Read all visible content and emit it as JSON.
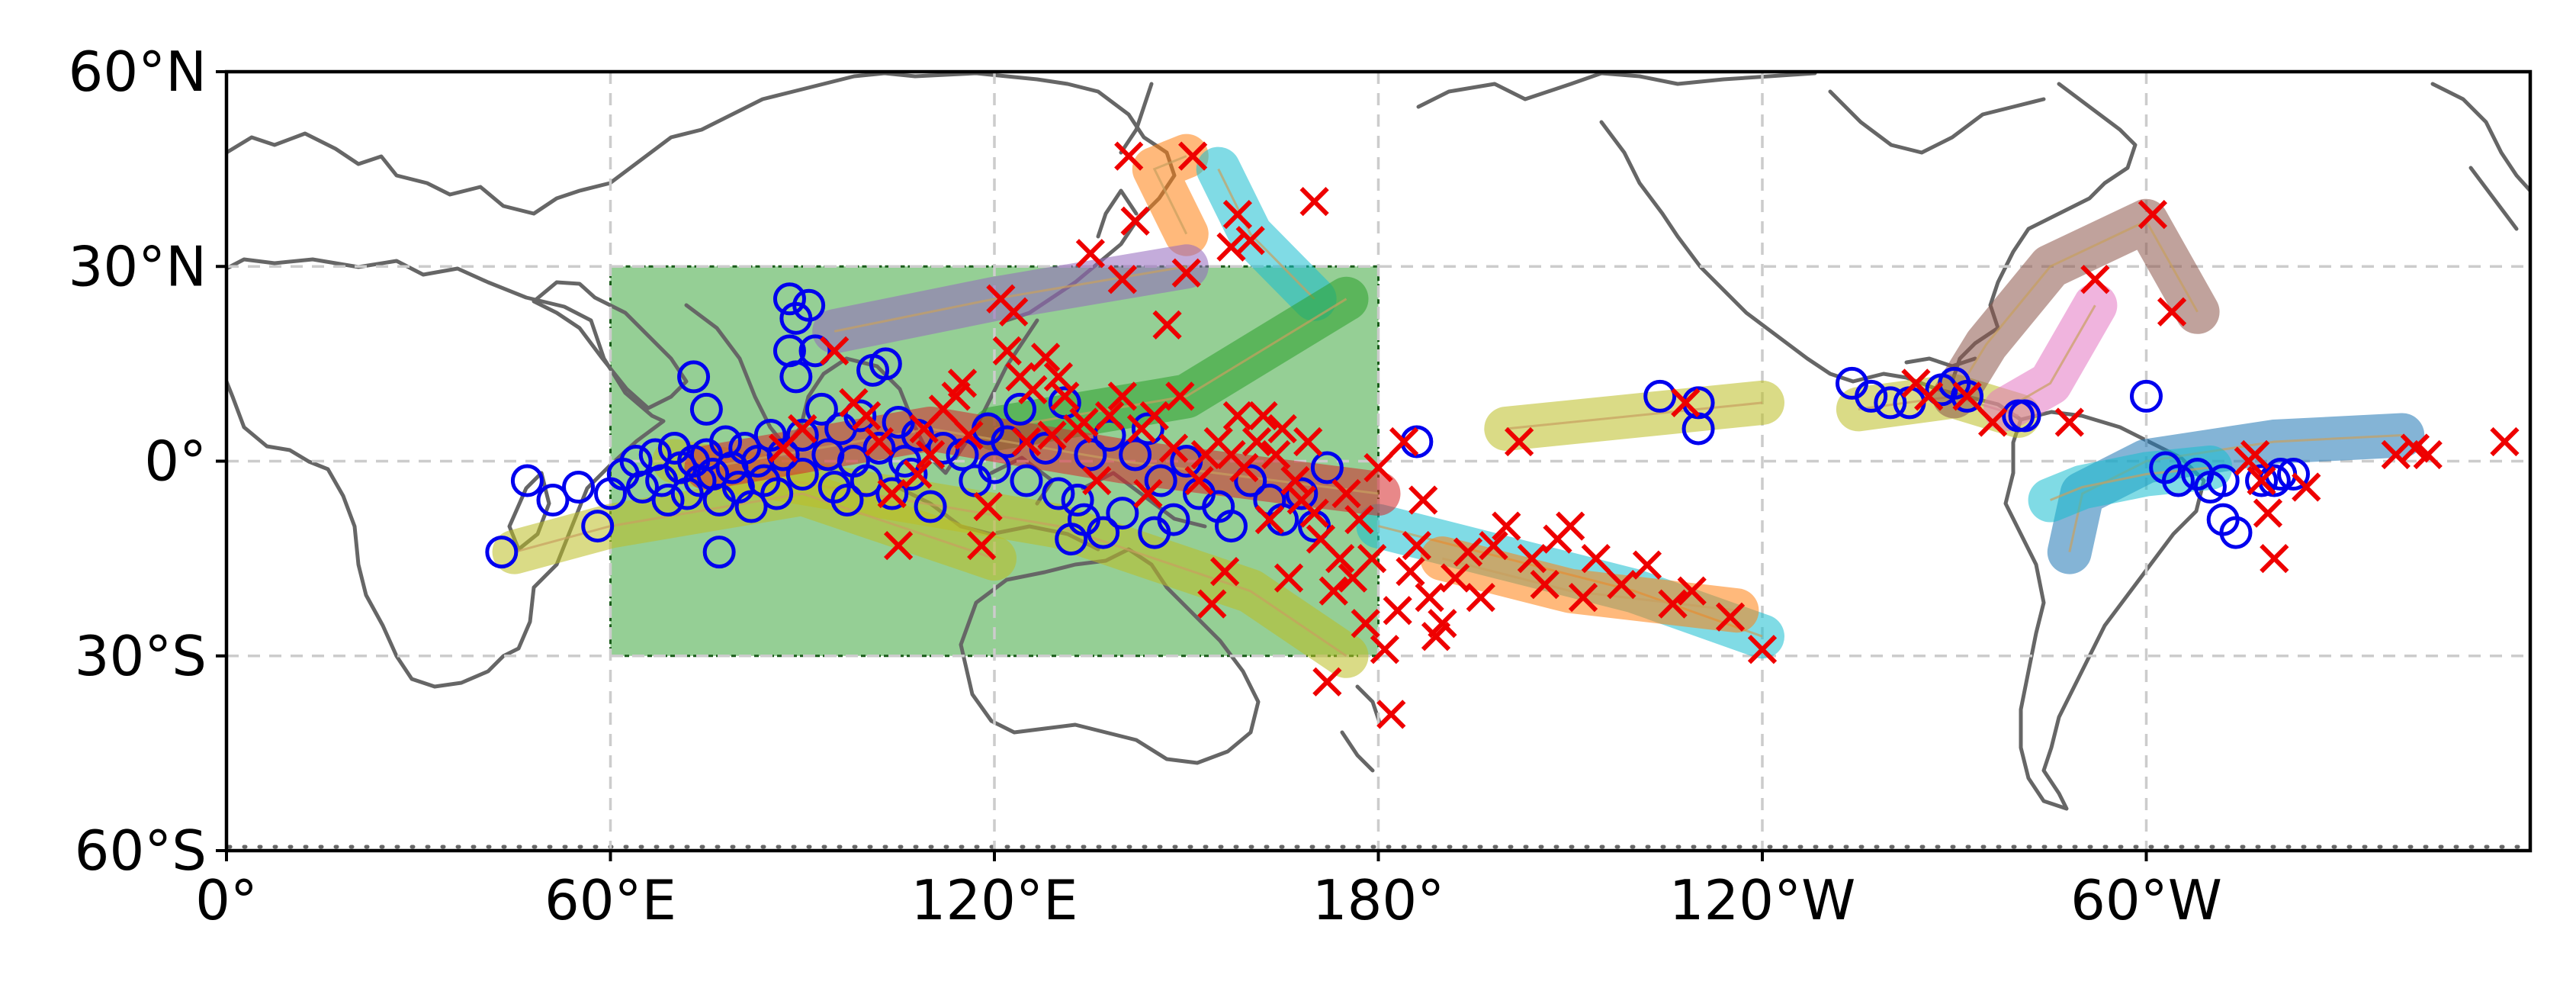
{
  "map": {
    "projection": "PlateCarree",
    "lon_range": [
      0,
      360
    ],
    "lat_range": [
      -60,
      60
    ],
    "gridlines": true,
    "gridline_style": "dashed",
    "xticks": [
      {
        "lon": 0,
        "label": "0°"
      },
      {
        "lon": 60,
        "label": "60°E"
      },
      {
        "lon": 120,
        "label": "120°E"
      },
      {
        "lon": 180,
        "label": "180°"
      },
      {
        "lon": 240,
        "label": "120°W"
      },
      {
        "lon": 300,
        "label": "60°W"
      }
    ],
    "yticks": [
      {
        "lat": 60,
        "label": "60°N"
      },
      {
        "lat": 30,
        "label": "30°N"
      },
      {
        "lat": 0,
        "label": "0°"
      },
      {
        "lat": -30,
        "label": "30°S"
      },
      {
        "lat": -60,
        "label": "60°S"
      }
    ],
    "region_box": {
      "lon_min": 60,
      "lon_max": 180,
      "lat_min": -30,
      "lat_max": 30,
      "color": "#2ca02c"
    },
    "colors": {
      "coastline": "#666666",
      "grid": "#cccccc",
      "start_marker": "#0000ee",
      "end_marker": "#ee0000",
      "track_palette": [
        "#1f77b4",
        "#ff7f0e",
        "#2ca02c",
        "#d62728",
        "#9467bd",
        "#8c564b",
        "#e377c2",
        "#7f7f7f",
        "#bcbd22",
        "#17becf"
      ]
    },
    "markers": {
      "start": "open circle",
      "end": "x"
    }
  },
  "chart_data": {
    "type": "scatter",
    "title": "",
    "xlabel": "",
    "ylabel": "",
    "xlim": [
      0,
      360
    ],
    "ylim": [
      -60,
      60
    ],
    "tracks": [
      {
        "path": [
          [
            150,
            35
          ],
          [
            145,
            45
          ],
          [
            150,
            47
          ]
        ],
        "color_index": 1
      },
      {
        "path": [
          [
            170,
            25
          ],
          [
            160,
            35
          ],
          [
            155,
            45
          ]
        ],
        "color_index": 9
      },
      {
        "path": [
          [
            200,
            5
          ],
          [
            230,
            8
          ],
          [
            240,
            9
          ]
        ],
        "color_index": 8
      },
      {
        "path": [
          [
            255,
            8
          ],
          [
            270,
            10
          ],
          [
            280,
            7
          ]
        ],
        "color_index": 8
      },
      {
        "path": [
          [
            270,
            10
          ],
          [
            275,
            18
          ],
          [
            285,
            30
          ],
          [
            300,
            37
          ],
          [
            308,
            23
          ]
        ],
        "color_index": 5
      },
      {
        "path": [
          [
            278,
            8
          ],
          [
            285,
            12
          ],
          [
            292,
            24
          ]
        ],
        "color_index": 6
      },
      {
        "path": [
          [
            340,
            4
          ],
          [
            320,
            3
          ],
          [
            300,
            0
          ],
          [
            290,
            -5
          ],
          [
            288,
            -14
          ]
        ],
        "color_index": 0
      },
      {
        "path": [
          [
            310,
            -1
          ],
          [
            300,
            -2
          ],
          [
            290,
            -4
          ],
          [
            285,
            -6
          ]
        ],
        "color_index": 9
      },
      {
        "path": [
          [
            180,
            -10
          ],
          [
            200,
            -15
          ],
          [
            220,
            -20
          ],
          [
            240,
            -27
          ]
        ],
        "color_index": 9
      },
      {
        "path": [
          [
            190,
            -15
          ],
          [
            210,
            -20
          ],
          [
            236,
            -23
          ]
        ],
        "color_index": 1
      },
      {
        "path": [
          [
            120,
            5
          ],
          [
            150,
            10
          ],
          [
            175,
            25
          ]
        ],
        "color_index": 2
      },
      {
        "path": [
          [
            95,
            20
          ],
          [
            120,
            25
          ],
          [
            150,
            30
          ]
        ],
        "color_index": 4
      },
      {
        "path": [
          [
            70,
            0
          ],
          [
            100,
            -5
          ],
          [
            130,
            -10
          ],
          [
            160,
            -20
          ],
          [
            175,
            -30
          ]
        ],
        "color_index": 8
      },
      {
        "path": [
          [
            45,
            -14
          ],
          [
            60,
            -10
          ],
          [
            90,
            -5
          ],
          [
            120,
            -15
          ]
        ],
        "color_index": 8
      },
      {
        "path": [
          [
            75,
            -1
          ],
          [
            110,
            5
          ],
          [
            140,
            0
          ],
          [
            180,
            -5
          ]
        ],
        "color_index": 3
      }
    ],
    "starts": [
      [
        43,
        -14
      ],
      [
        47,
        -3
      ],
      [
        51,
        -6
      ],
      [
        55,
        -4
      ],
      [
        58,
        -10
      ],
      [
        60,
        -5
      ],
      [
        62,
        -2
      ],
      [
        64,
        0
      ],
      [
        65,
        -4
      ],
      [
        67,
        1
      ],
      [
        68,
        -3
      ],
      [
        69,
        -6
      ],
      [
        70,
        2
      ],
      [
        71,
        -1
      ],
      [
        72,
        -5
      ],
      [
        73,
        13
      ],
      [
        73,
        0
      ],
      [
        74,
        -3
      ],
      [
        75,
        8
      ],
      [
        75,
        1
      ],
      [
        76,
        -2
      ],
      [
        77,
        -6
      ],
      [
        77,
        -14
      ],
      [
        78,
        3
      ],
      [
        79,
        -1
      ],
      [
        80,
        -4
      ],
      [
        81,
        2
      ],
      [
        82,
        -7
      ],
      [
        83,
        0
      ],
      [
        84,
        -3
      ],
      [
        85,
        4
      ],
      [
        86,
        -5
      ],
      [
        87,
        1
      ],
      [
        88,
        25
      ],
      [
        88,
        17
      ],
      [
        89,
        22
      ],
      [
        89,
        13
      ],
      [
        90,
        -2
      ],
      [
        90,
        4
      ],
      [
        91,
        24
      ],
      [
        92,
        17
      ],
      [
        93,
        8
      ],
      [
        94,
        1
      ],
      [
        95,
        -4
      ],
      [
        96,
        5
      ],
      [
        97,
        -6
      ],
      [
        98,
        0
      ],
      [
        99,
        7
      ],
      [
        100,
        -3
      ],
      [
        101,
        14
      ],
      [
        102,
        2
      ],
      [
        103,
        15
      ],
      [
        104,
        -5
      ],
      [
        105,
        6
      ],
      [
        106,
        0
      ],
      [
        107,
        -2
      ],
      [
        108,
        4
      ],
      [
        110,
        -7
      ],
      [
        112,
        2
      ],
      [
        115,
        1
      ],
      [
        117,
        -3
      ],
      [
        119,
        5
      ],
      [
        120,
        -1
      ],
      [
        122,
        3
      ],
      [
        124,
        8
      ],
      [
        125,
        -3
      ],
      [
        128,
        2
      ],
      [
        130,
        -5
      ],
      [
        131,
        9
      ],
      [
        132,
        -12
      ],
      [
        133,
        -6
      ],
      [
        134,
        -9
      ],
      [
        135,
        1
      ],
      [
        137,
        -11
      ],
      [
        138,
        4
      ],
      [
        140,
        -8
      ],
      [
        142,
        1
      ],
      [
        144,
        5
      ],
      [
        145,
        -11
      ],
      [
        146,
        -3
      ],
      [
        148,
        -9
      ],
      [
        150,
        0
      ],
      [
        152,
        -5
      ],
      [
        155,
        -7
      ],
      [
        157,
        -10
      ],
      [
        160,
        -3
      ],
      [
        163,
        -6
      ],
      [
        165,
        -9
      ],
      [
        168,
        -5
      ],
      [
        170,
        -10
      ],
      [
        172,
        -1
      ],
      [
        186,
        3
      ],
      [
        224,
        10
      ],
      [
        230,
        5
      ],
      [
        230,
        9
      ],
      [
        254,
        12
      ],
      [
        257,
        10
      ],
      [
        260,
        9
      ],
      [
        263,
        9
      ],
      [
        268,
        11
      ],
      [
        270,
        12
      ],
      [
        272,
        10
      ],
      [
        280,
        7
      ],
      [
        281,
        7
      ],
      [
        300,
        10
      ],
      [
        303,
        -1
      ],
      [
        305,
        -3
      ],
      [
        308,
        -2
      ],
      [
        310,
        -4
      ],
      [
        312,
        -3
      ],
      [
        312,
        -9
      ],
      [
        314,
        -11
      ],
      [
        318,
        -3
      ],
      [
        320,
        -3
      ],
      [
        321,
        -2
      ],
      [
        323,
        -2
      ]
    ],
    "ends": [
      [
        87,
        2
      ],
      [
        90,
        5
      ],
      [
        95,
        17
      ],
      [
        98,
        9
      ],
      [
        100,
        7
      ],
      [
        102,
        3
      ],
      [
        104,
        -5
      ],
      [
        105,
        -13
      ],
      [
        108,
        -2
      ],
      [
        109,
        5
      ],
      [
        110,
        1
      ],
      [
        112,
        8
      ],
      [
        114,
        10
      ],
      [
        115,
        12
      ],
      [
        116,
        4
      ],
      [
        118,
        -13
      ],
      [
        119,
        -7
      ],
      [
        121,
        25
      ],
      [
        122,
        17
      ],
      [
        123,
        23
      ],
      [
        124,
        13
      ],
      [
        125,
        3
      ],
      [
        126,
        11
      ],
      [
        128,
        16
      ],
      [
        129,
        4
      ],
      [
        130,
        13
      ],
      [
        131,
        10
      ],
      [
        133,
        5
      ],
      [
        134,
        6
      ],
      [
        135,
        32
      ],
      [
        136,
        -3
      ],
      [
        138,
        7
      ],
      [
        140,
        28
      ],
      [
        140,
        10
      ],
      [
        141,
        47
      ],
      [
        142,
        37
      ],
      [
        143,
        5
      ],
      [
        144,
        -5
      ],
      [
        145,
        7
      ],
      [
        147,
        21
      ],
      [
        148,
        2
      ],
      [
        149,
        10
      ],
      [
        150,
        29
      ],
      [
        151,
        47
      ],
      [
        152,
        -3
      ],
      [
        153,
        1
      ],
      [
        154,
        -22
      ],
      [
        155,
        3
      ],
      [
        156,
        -17
      ],
      [
        157,
        33
      ],
      [
        157,
        1
      ],
      [
        158,
        7
      ],
      [
        158,
        38
      ],
      [
        159,
        -1
      ],
      [
        160,
        34
      ],
      [
        161,
        3
      ],
      [
        162,
        7
      ],
      [
        163,
        -9
      ],
      [
        164,
        1
      ],
      [
        165,
        5
      ],
      [
        166,
        -18
      ],
      [
        167,
        -3
      ],
      [
        168,
        -6
      ],
      [
        169,
        3
      ],
      [
        170,
        40
      ],
      [
        170,
        -8
      ],
      [
        171,
        -12
      ],
      [
        172,
        -34
      ],
      [
        173,
        -20
      ],
      [
        174,
        -15
      ],
      [
        175,
        -5
      ],
      [
        176,
        -18
      ],
      [
        177,
        -9
      ],
      [
        178,
        -25
      ],
      [
        179,
        -15
      ],
      [
        180,
        -1
      ],
      [
        181,
        -29
      ],
      [
        182,
        -39
      ],
      [
        183,
        -23
      ],
      [
        184,
        3
      ],
      [
        185,
        -17
      ],
      [
        186,
        -13
      ],
      [
        187,
        -6
      ],
      [
        188,
        -21
      ],
      [
        189,
        -27
      ],
      [
        190,
        -25
      ],
      [
        192,
        -18
      ],
      [
        194,
        -14
      ],
      [
        196,
        -21
      ],
      [
        198,
        -13
      ],
      [
        200,
        -10
      ],
      [
        202,
        3
      ],
      [
        204,
        -15
      ],
      [
        206,
        -19
      ],
      [
        208,
        -12
      ],
      [
        210,
        -10
      ],
      [
        212,
        -21
      ],
      [
        214,
        -15
      ],
      [
        218,
        -19
      ],
      [
        222,
        -16
      ],
      [
        226,
        -22
      ],
      [
        228,
        9
      ],
      [
        229,
        -20
      ],
      [
        235,
        -24
      ],
      [
        240,
        -29
      ],
      [
        264,
        12
      ],
      [
        266,
        10
      ],
      [
        272,
        10
      ],
      [
        276,
        6
      ],
      [
        292,
        28
      ],
      [
        288,
        6
      ],
      [
        301,
        38
      ],
      [
        304,
        23
      ],
      [
        316,
        0
      ],
      [
        317,
        1
      ],
      [
        318,
        -3
      ],
      [
        319,
        -8
      ],
      [
        320,
        -15
      ],
      [
        325,
        -4
      ],
      [
        339,
        1
      ],
      [
        342,
        2
      ],
      [
        344,
        1
      ],
      [
        356,
        3
      ]
    ]
  }
}
